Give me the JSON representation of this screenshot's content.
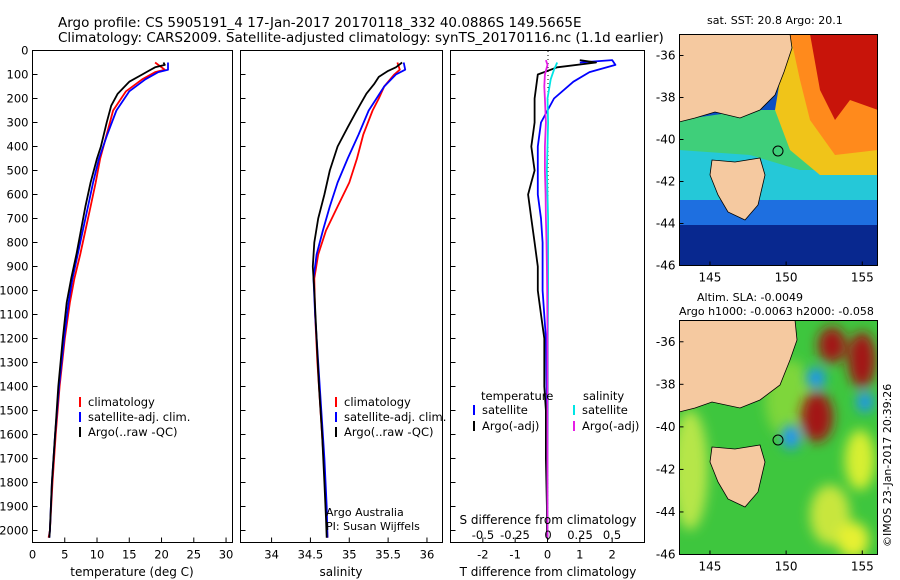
{
  "header": {
    "line1": "Argo profile: CS 5905191_4 17-Jan-2017 20170118_332 40.0886S 149.5665E",
    "line2": "Climatology: CARS2009. Satellite-adjusted climatology: synTS_20170116.nc (1.1d earlier)"
  },
  "colors": {
    "climatology": "#ff0000",
    "satellite": "#0000ff",
    "argo": "#000000",
    "sat_s": "#00e5e5",
    "argo_s": "#e61ee6"
  },
  "chart_data": [
    {
      "type": "line",
      "xlabel": "temperature (deg C)",
      "xlim": [
        0,
        31
      ],
      "ylim": [
        2050,
        0
      ],
      "xticks": [
        0,
        5,
        10,
        15,
        20,
        25,
        30
      ],
      "yticks": [
        0,
        100,
        200,
        300,
        400,
        500,
        600,
        700,
        800,
        900,
        1000,
        1100,
        1200,
        1300,
        1400,
        1500,
        1600,
        1700,
        1800,
        1900,
        2000
      ],
      "legend": [
        "climatology",
        "satellite-adj. clim.",
        "Argo(..raw -QC)"
      ],
      "series": [
        {
          "name": "climatology",
          "color": "#ff0000",
          "points": [
            [
              19,
              50
            ],
            [
              20.5,
              80
            ],
            [
              19,
              90
            ],
            [
              17,
              120
            ],
            [
              14.5,
              170
            ],
            [
              12.5,
              250
            ],
            [
              11.5,
              350
            ],
            [
              10.5,
              450
            ],
            [
              9.8,
              550
            ],
            [
              9,
              650
            ],
            [
              8.2,
              750
            ],
            [
              7.4,
              850
            ],
            [
              6.5,
              950
            ],
            [
              5.8,
              1050
            ],
            [
              5,
              1200
            ],
            [
              4.2,
              1400
            ],
            [
              3.6,
              1600
            ],
            [
              3.1,
              1800
            ],
            [
              2.7,
              2000
            ],
            [
              2.5,
              2030
            ]
          ]
        },
        {
          "name": "satellite-adj. clim.",
          "color": "#0000ff",
          "points": [
            [
              21,
              50
            ],
            [
              21,
              80
            ],
            [
              19.5,
              90
            ],
            [
              17.5,
              120
            ],
            [
              15,
              170
            ],
            [
              13,
              250
            ],
            [
              11.6,
              350
            ],
            [
              10.3,
              450
            ],
            [
              9.4,
              550
            ],
            [
              8.6,
              650
            ],
            [
              7.8,
              750
            ],
            [
              7,
              850
            ],
            [
              6.2,
              950
            ],
            [
              5.6,
              1050
            ],
            [
              4.9,
              1200
            ],
            [
              4.1,
              1400
            ],
            [
              3.5,
              1600
            ],
            [
              3,
              1800
            ],
            [
              2.7,
              2000
            ],
            [
              2.6,
              2030
            ]
          ]
        },
        {
          "name": "Argo(..raw -QC)",
          "color": "#000000",
          "points": [
            [
              20.3,
              50
            ],
            [
              20.5,
              60
            ],
            [
              19,
              70
            ],
            [
              18,
              85
            ],
            [
              17,
              100
            ],
            [
              15,
              130
            ],
            [
              13.2,
              180
            ],
            [
              12.2,
              230
            ],
            [
              11.5,
              300
            ],
            [
              10.6,
              400
            ],
            [
              10,
              450
            ],
            [
              9,
              550
            ],
            [
              8.2,
              650
            ],
            [
              7.5,
              750
            ],
            [
              6.8,
              850
            ],
            [
              6,
              950
            ],
            [
              5.3,
              1050
            ],
            [
              4.7,
              1200
            ],
            [
              4,
              1400
            ],
            [
              3.5,
              1600
            ],
            [
              3,
              1800
            ],
            [
              2.7,
              2000
            ],
            [
              2.6,
              2030
            ]
          ]
        }
      ]
    },
    {
      "type": "line",
      "xlabel": "salinity",
      "xlim": [
        33.6,
        36.2
      ],
      "ylim": [
        2050,
        0
      ],
      "xticks": [
        34,
        34.5,
        35,
        35.5,
        36
      ],
      "legend": [
        "climatology",
        "satellite-adj. clim.",
        "Argo(..raw -QC)"
      ],
      "annotation": [
        "Argo Australia",
        "PI: Susan Wijffels"
      ],
      "series": [
        {
          "name": "climatology",
          "color": "#ff0000",
          "points": [
            [
              35.62,
              50
            ],
            [
              35.65,
              80
            ],
            [
              35.58,
              100
            ],
            [
              35.45,
              150
            ],
            [
              35.38,
              200
            ],
            [
              35.3,
              250
            ],
            [
              35.18,
              350
            ],
            [
              35.1,
              450
            ],
            [
              35,
              550
            ],
            [
              34.85,
              650
            ],
            [
              34.7,
              750
            ],
            [
              34.6,
              850
            ],
            [
              34.55,
              950
            ],
            [
              34.56,
              1100
            ],
            [
              34.59,
              1300
            ],
            [
              34.63,
              1500
            ],
            [
              34.67,
              1700
            ],
            [
              34.7,
              1900
            ],
            [
              34.72,
              2030
            ]
          ]
        },
        {
          "name": "satellite-adj. clim.",
          "color": "#0000ff",
          "points": [
            [
              35.7,
              50
            ],
            [
              35.72,
              80
            ],
            [
              35.6,
              100
            ],
            [
              35.45,
              150
            ],
            [
              35.35,
              200
            ],
            [
              35.25,
              250
            ],
            [
              35.12,
              350
            ],
            [
              34.98,
              450
            ],
            [
              34.85,
              550
            ],
            [
              34.75,
              650
            ],
            [
              34.66,
              750
            ],
            [
              34.58,
              850
            ],
            [
              34.54,
              950
            ],
            [
              34.56,
              1100
            ],
            [
              34.6,
              1300
            ],
            [
              34.64,
              1500
            ],
            [
              34.68,
              1700
            ],
            [
              34.71,
              1900
            ],
            [
              34.72,
              2030
            ]
          ]
        },
        {
          "name": "Argo(..raw -QC)",
          "color": "#000000",
          "points": [
            [
              35.68,
              50
            ],
            [
              35.6,
              70
            ],
            [
              35.5,
              85
            ],
            [
              35.38,
              110
            ],
            [
              35.32,
              140
            ],
            [
              35.22,
              180
            ],
            [
              35.15,
              220
            ],
            [
              35.08,
              260
            ],
            [
              34.98,
              320
            ],
            [
              34.85,
              400
            ],
            [
              34.75,
              500
            ],
            [
              34.68,
              600
            ],
            [
              34.6,
              700
            ],
            [
              34.55,
              800
            ],
            [
              34.53,
              900
            ],
            [
              34.55,
              1000
            ],
            [
              34.58,
              1200
            ],
            [
              34.61,
              1400
            ],
            [
              34.65,
              1600
            ],
            [
              34.68,
              1800
            ],
            [
              34.7,
              1950
            ],
            [
              34.71,
              2030
            ]
          ]
        }
      ]
    },
    {
      "type": "line",
      "xlabel": "T difference from climatology",
      "xlabel_top": "S difference from climatology",
      "xlim": [
        -3,
        3
      ],
      "ylim": [
        2050,
        0
      ],
      "xticks": [
        -2,
        -1,
        0,
        1,
        2
      ],
      "xticks_top": [
        "-0.5",
        "-0.25",
        "0",
        "0.25",
        "0.5"
      ],
      "legend_temperature": [
        "temperature",
        "satellite",
        "Argo(-adj)"
      ],
      "legend_salinity": [
        "salinity",
        "satellite",
        "Argo(-adj)"
      ],
      "series": [
        {
          "name": "temperature satellite",
          "color": "#0000ff",
          "points": [
            [
              1,
              50
            ],
            [
              2,
              40
            ],
            [
              2.1,
              60
            ],
            [
              1.3,
              90
            ],
            [
              0.8,
              130
            ],
            [
              0.2,
              200
            ],
            [
              -0.2,
              300
            ],
            [
              -0.3,
              400
            ],
            [
              -0.3,
              500
            ],
            [
              -0.3,
              600
            ],
            [
              -0.2,
              700
            ],
            [
              -0.15,
              800
            ],
            [
              -0.15,
              900
            ],
            [
              -0.15,
              1000
            ],
            [
              -0.05,
              1200
            ],
            [
              -0.02,
              1500
            ],
            [
              -0.02,
              2030
            ]
          ]
        },
        {
          "name": "temperature Argo(-adj)",
          "color": "#000000",
          "points": [
            [
              1,
              40
            ],
            [
              1.5,
              50
            ],
            [
              0.3,
              70
            ],
            [
              -0.3,
              100
            ],
            [
              -0.4,
              200
            ],
            [
              -0.4,
              300
            ],
            [
              -0.5,
              400
            ],
            [
              -0.4,
              500
            ],
            [
              -0.5,
              550
            ],
            [
              -0.6,
              600
            ],
            [
              -0.5,
              700
            ],
            [
              -0.4,
              800
            ],
            [
              -0.3,
              900
            ],
            [
              -0.3,
              1000
            ],
            [
              -0.2,
              1100
            ],
            [
              -0.1,
              1200
            ],
            [
              -0.1,
              1300
            ],
            [
              -0.1,
              1400
            ],
            [
              -0.05,
              1500
            ],
            [
              -0.05,
              1700
            ],
            [
              -0.02,
              1900
            ],
            [
              -0.02,
              2030
            ]
          ]
        },
        {
          "name": "salinity satellite",
          "color": "#00e5e5",
          "points": [
            [
              0.3,
              50
            ],
            [
              0.2,
              80
            ],
            [
              0.1,
              120
            ],
            [
              0,
              200
            ],
            [
              0.02,
              300
            ],
            [
              0,
              400
            ],
            [
              -0.02,
              500
            ],
            [
              0,
              600
            ],
            [
              0.02,
              700
            ],
            [
              0.02,
              800
            ],
            [
              0.02,
              900
            ],
            [
              0.02,
              1000
            ],
            [
              0.01,
              1200
            ],
            [
              0.01,
              1500
            ],
            [
              0,
              1800
            ],
            [
              0,
              2030
            ]
          ]
        },
        {
          "name": "salinity Argo(-adj)",
          "color": "#e61ee6",
          "points": [
            [
              -0.05,
              40
            ],
            [
              0,
              60
            ],
            [
              -0.08,
              100
            ],
            [
              -0.1,
              150
            ],
            [
              -0.08,
              200
            ],
            [
              -0.05,
              300
            ],
            [
              -0.08,
              400
            ],
            [
              -0.08,
              500
            ],
            [
              -0.06,
              600
            ],
            [
              -0.05,
              700
            ],
            [
              -0.03,
              800
            ],
            [
              -0.02,
              900
            ],
            [
              -0.01,
              1000
            ],
            [
              0,
              1200
            ],
            [
              0,
              1400
            ],
            [
              0,
              1600
            ],
            [
              0,
              1800
            ],
            [
              0,
              2030
            ]
          ]
        }
      ]
    },
    {
      "type": "heatmap",
      "title": "sat. SST: 20.8  Argo: 20.1",
      "xlim": [
        143,
        156
      ],
      "ylim": [
        -46,
        -35
      ],
      "xticks": [
        145,
        150,
        155
      ],
      "yticks": [
        -36,
        -38,
        -40,
        -42,
        -44,
        -46
      ],
      "marker": [
        149.57,
        -40.09
      ]
    },
    {
      "type": "heatmap",
      "title_lines": [
        "Altim. SLA: -0.0049",
        "Argo h1000: -0.0063 h2000: -0.058"
      ],
      "xlim": [
        143,
        156
      ],
      "ylim": [
        -46,
        -35
      ],
      "xticks": [
        145,
        150,
        155
      ],
      "yticks": [
        -36,
        -38,
        -40,
        -42,
        -44,
        -46
      ],
      "marker": [
        149.57,
        -40.09
      ]
    }
  ],
  "watermark": "©IMOS 23-Jan-2017 20:39:26"
}
